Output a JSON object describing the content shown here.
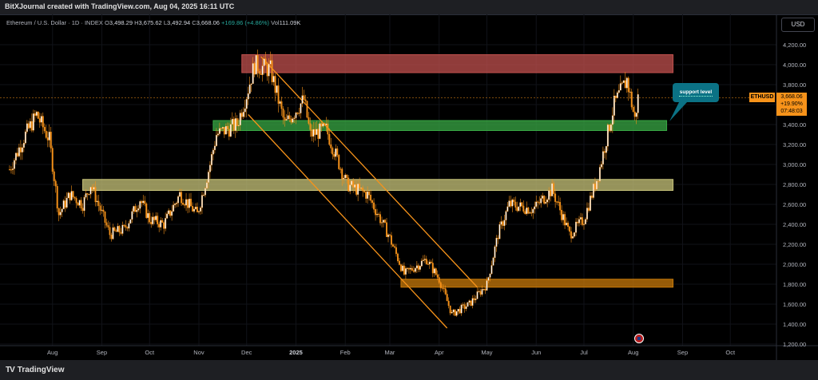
{
  "header": {
    "credit": "BitXJournal created with TradingView.com, Aug 04, 2025 16:11 UTC"
  },
  "legend": {
    "symbol_name": "Ethereum / U.S. Dollar · 1D · INDEX",
    "open_label": "O",
    "open": "3,498.29",
    "high_label": "H",
    "high": "3,675.62",
    "low_label": "L",
    "low": "3,492.94",
    "close_label": "C",
    "close": "3,668.06",
    "change": "+169.86 (+4.86%)",
    "volume_label": "Vol",
    "volume": "111.09K"
  },
  "currency_button": "USD",
  "price_tag": {
    "symbol": "ETHUSD",
    "price": "3,668.06",
    "change_pct": "+19.90%",
    "countdown": "07:48:03"
  },
  "annotation": {
    "label": "support level"
  },
  "footer": {
    "logo_text": "TradingView",
    "logo_mark": "TV"
  },
  "colors": {
    "candle": "#f7931a",
    "candle_wick": "#f7931a",
    "candle_up_body": "#ffffff",
    "zone_top": "#c0504d",
    "zone_green": "#38a844",
    "zone_olive": "#c8c47a",
    "zone_orange": "#c87a0a",
    "channel": "#f7931a",
    "callout": "#0b7285"
  },
  "chart_data": {
    "type": "candlestick",
    "y_axis_ticks": [
      "4,200.00",
      "4,000.00",
      "3,800.00",
      "3,600.00",
      "3,400.00",
      "3,200.00",
      "3,000.00",
      "2,800.00",
      "2,600.00",
      "2,400.00",
      "2,200.00",
      "2,000.00",
      "1,800.00",
      "1,600.00",
      "1,400.00",
      "1,200.00"
    ],
    "y_axis_values": [
      4200,
      4000,
      3800,
      3600,
      3400,
      3200,
      3000,
      2800,
      2600,
      2400,
      2200,
      2000,
      1800,
      1600,
      1400,
      1200
    ],
    "x_axis_ticks": [
      {
        "label": "Aug",
        "date": "2024-08-01",
        "bold": false
      },
      {
        "label": "Sep",
        "date": "2024-09-01",
        "bold": false
      },
      {
        "label": "Oct",
        "date": "2024-10-01",
        "bold": false
      },
      {
        "label": "Nov",
        "date": "2024-11-01",
        "bold": false
      },
      {
        "label": "Dec",
        "date": "2024-12-01",
        "bold": false
      },
      {
        "label": "2025",
        "date": "2025-01-01",
        "bold": true
      },
      {
        "label": "Feb",
        "date": "2025-02-01",
        "bold": false
      },
      {
        "label": "Mar",
        "date": "2025-03-01",
        "bold": false
      },
      {
        "label": "Apr",
        "date": "2025-04-01",
        "bold": false
      },
      {
        "label": "May",
        "date": "2025-05-01",
        "bold": false
      },
      {
        "label": "Jun",
        "date": "2025-06-01",
        "bold": false
      },
      {
        "label": "Jul",
        "date": "2025-07-01",
        "bold": false
      },
      {
        "label": "Aug",
        "date": "2025-08-01",
        "bold": false
      },
      {
        "label": "Sep",
        "date": "2025-09-01",
        "bold": false
      },
      {
        "label": "Oct",
        "date": "2025-10-01",
        "bold": false
      }
    ],
    "price_path": [
      [
        "2024-07-05",
        2950
      ],
      [
        "2024-07-15",
        3300
      ],
      [
        "2024-07-22",
        3500
      ],
      [
        "2024-07-30",
        3250
      ],
      [
        "2024-08-05",
        2500
      ],
      [
        "2024-08-12",
        2700
      ],
      [
        "2024-08-20",
        2600
      ],
      [
        "2024-08-25",
        2800
      ],
      [
        "2024-09-06",
        2300
      ],
      [
        "2024-09-15",
        2350
      ],
      [
        "2024-09-25",
        2650
      ],
      [
        "2024-10-01",
        2450
      ],
      [
        "2024-10-10",
        2400
      ],
      [
        "2024-10-20",
        2700
      ],
      [
        "2024-10-31",
        2500
      ],
      [
        "2024-11-08",
        3000
      ],
      [
        "2024-11-12",
        3300
      ],
      [
        "2024-11-25",
        3400
      ],
      [
        "2024-12-01",
        3700
      ],
      [
        "2024-12-06",
        4000
      ],
      [
        "2024-12-16",
        3950
      ],
      [
        "2024-12-25",
        3400
      ],
      [
        "2025-01-06",
        3650
      ],
      [
        "2025-01-10",
        3300
      ],
      [
        "2025-01-20",
        3350
      ],
      [
        "2025-02-02",
        2800
      ],
      [
        "2025-02-15",
        2700
      ],
      [
        "2025-02-28",
        2300
      ],
      [
        "2025-03-10",
        1900
      ],
      [
        "2025-03-24",
        2050
      ],
      [
        "2025-04-01",
        1850
      ],
      [
        "2025-04-09",
        1500
      ],
      [
        "2025-04-20",
        1600
      ],
      [
        "2025-05-01",
        1800
      ],
      [
        "2025-05-08",
        2300
      ],
      [
        "2025-05-15",
        2600
      ],
      [
        "2025-05-30",
        2550
      ],
      [
        "2025-06-11",
        2750
      ],
      [
        "2025-06-22",
        2300
      ],
      [
        "2025-07-01",
        2450
      ],
      [
        "2025-07-10",
        2900
      ],
      [
        "2025-07-20",
        3600
      ],
      [
        "2025-07-28",
        3850
      ],
      [
        "2025-08-02",
        3450
      ],
      [
        "2025-08-04",
        3668
      ]
    ],
    "zones": [
      {
        "from": "2024-11-28",
        "to": "2025-08-26",
        "low": 3920,
        "high": 4100,
        "color_key": "zone_top"
      },
      {
        "from": "2024-11-10",
        "to": "2025-08-22",
        "low": 3340,
        "high": 3440,
        "color_key": "zone_green"
      },
      {
        "from": "2024-08-20",
        "to": "2025-08-26",
        "low": 2740,
        "high": 2850,
        "color_key": "zone_olive"
      },
      {
        "from": "2025-03-08",
        "to": "2025-08-26",
        "low": 1770,
        "high": 1850,
        "color_key": "zone_orange"
      }
    ],
    "channel_lines": [
      {
        "from": [
          "2024-12-10",
          4080
        ],
        "to": [
          "2025-04-25",
          1770
        ]
      },
      {
        "from": [
          "2024-12-02",
          3500
        ],
        "to": [
          "2025-04-06",
          1360
        ]
      }
    ],
    "current_price": 3668.06
  }
}
